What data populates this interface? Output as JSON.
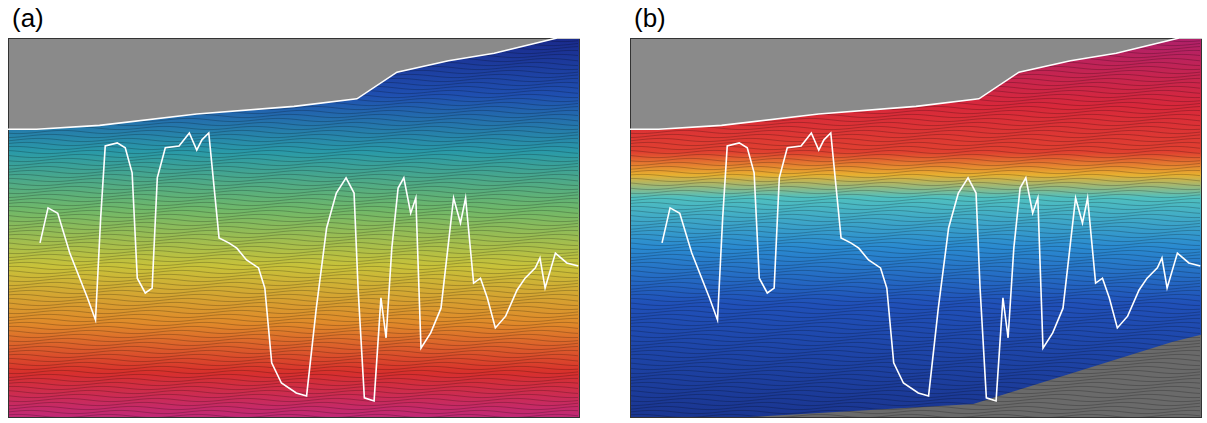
{
  "chart_data": [
    {
      "type": "line",
      "title": "(a)",
      "xlim": [
        0,
        100
      ],
      "ylim": [
        0,
        100
      ],
      "tick_labels": false,
      "grid": false,
      "series": [
        {
          "color": "#ffffff",
          "x": [
            0,
            5,
            16,
            33,
            50,
            61,
            68,
            77,
            85,
            96,
            100
          ],
          "values": [
            24,
            24,
            23,
            20,
            18,
            16,
            9,
            6,
            4,
            0,
            0
          ]
        },
        {
          "color": "#ffffff",
          "x": [
            5.6,
            7.0,
            8.7,
            10.8,
            13.9,
            15.3,
            16.2,
            17.0,
            19.1,
            20.5,
            21.7,
            22.6,
            24.0,
            25.2,
            26.1,
            27.5,
            29.9,
            31.7,
            33.0,
            33.9,
            35.1,
            36.9,
            38.6,
            40.0,
            41.7,
            43.8,
            44.9,
            46.1,
            47.8,
            50.4,
            52.2,
            53.9,
            55.7,
            57.4,
            59.1,
            60.5,
            61.2,
            62.3,
            64.0,
            65.2,
            66.1,
            67.1,
            68.2,
            69.2,
            70.4,
            71.3,
            72.2,
            73.9,
            75.7,
            76.9,
            77.9,
            79.1,
            80.0,
            81.4,
            82.6,
            83.8,
            85.2,
            87.0,
            89.0,
            90.4,
            92.2,
            93.0,
            93.9,
            95.7,
            97.7,
            99.7
          ],
          "values": [
            53.9,
            44.7,
            46.1,
            56.6,
            68.4,
            74.2,
            47.4,
            28.4,
            27.6,
            28.9,
            35.5,
            63.2,
            67.1,
            65.8,
            36.8,
            28.9,
            28.4,
            25.0,
            29.5,
            26.8,
            25.0,
            52.6,
            53.9,
            55.3,
            58.4,
            60.5,
            65.8,
            85.5,
            90.8,
            93.4,
            94.2,
            71.1,
            50.0,
            40.8,
            36.8,
            40.8,
            65.8,
            94.7,
            95.5,
            68.4,
            78.9,
            55.3,
            39.5,
            36.8,
            46.1,
            42.1,
            81.6,
            77.6,
            71.1,
            55.3,
            42.1,
            48.7,
            42.1,
            64.5,
            63.2,
            68.4,
            76.3,
            73.2,
            66.3,
            63.2,
            60.5,
            57.9,
            65.8,
            56.6,
            59.2,
            60.0
          ]
        }
      ]
    },
    {
      "type": "line",
      "title": "(b)",
      "xlim": [
        0,
        100
      ],
      "ylim": [
        0,
        100
      ],
      "tick_labels": false,
      "grid": false,
      "series": [
        {
          "color": "#ffffff",
          "x": [
            0,
            5,
            16,
            33,
            50,
            61,
            68,
            77,
            85,
            96,
            100
          ],
          "values": [
            24,
            24,
            23,
            20,
            18,
            16,
            9,
            6,
            4,
            0,
            0
          ]
        },
        {
          "color": "#ffffff",
          "x": [
            5.6,
            7.0,
            8.7,
            10.8,
            13.9,
            15.3,
            16.2,
            17.0,
            19.1,
            20.5,
            21.7,
            22.6,
            24.0,
            25.2,
            26.1,
            27.5,
            29.9,
            31.7,
            33.0,
            33.9,
            35.1,
            36.9,
            38.6,
            40.0,
            41.7,
            43.8,
            44.9,
            46.1,
            47.8,
            50.4,
            52.2,
            53.9,
            55.7,
            57.4,
            59.1,
            60.5,
            61.2,
            62.3,
            64.0,
            65.2,
            66.1,
            67.1,
            68.2,
            69.2,
            70.4,
            71.3,
            72.2,
            73.9,
            75.7,
            76.9,
            77.9,
            79.1,
            80.0,
            81.4,
            82.6,
            83.8,
            85.2,
            87.0,
            89.0,
            90.4,
            92.2,
            93.0,
            93.9,
            95.7,
            97.7,
            99.7
          ],
          "values": [
            53.9,
            44.7,
            46.1,
            56.6,
            68.4,
            74.2,
            47.4,
            28.4,
            27.6,
            28.9,
            35.5,
            63.2,
            67.1,
            65.8,
            36.8,
            28.9,
            28.4,
            25.0,
            29.5,
            26.8,
            25.0,
            52.6,
            53.9,
            55.3,
            58.4,
            60.5,
            65.8,
            85.5,
            90.8,
            93.4,
            94.2,
            71.1,
            50.0,
            40.8,
            36.8,
            40.8,
            65.8,
            94.7,
            95.5,
            68.4,
            78.9,
            55.3,
            39.5,
            36.8,
            46.1,
            42.1,
            81.6,
            77.6,
            71.1,
            55.3,
            42.1,
            48.7,
            42.1,
            64.5,
            63.2,
            68.4,
            76.3,
            73.2,
            66.3,
            63.2,
            60.5,
            57.9,
            65.8,
            56.6,
            59.2,
            60.0
          ]
        }
      ]
    }
  ]
}
